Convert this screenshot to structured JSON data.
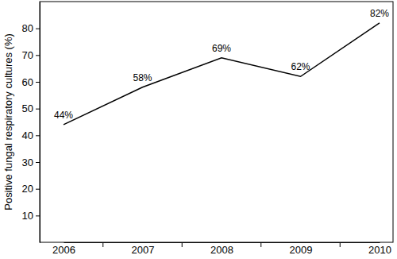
{
  "chart_data": {
    "type": "line",
    "y_label": "Positive fungal respiratory cultures (%)",
    "categories": [
      "2006",
      "2007",
      "2008",
      "2009",
      "2010"
    ],
    "values": [
      44,
      58,
      69,
      62,
      82
    ],
    "value_labels": [
      "44%",
      "58%",
      "69%",
      "62%",
      "82%"
    ],
    "color": "#000000",
    "ylim": [
      0,
      90
    ],
    "yticks": [
      10,
      20,
      30,
      40,
      50,
      60,
      70,
      80
    ],
    "grid": false,
    "data_labels": true
  }
}
